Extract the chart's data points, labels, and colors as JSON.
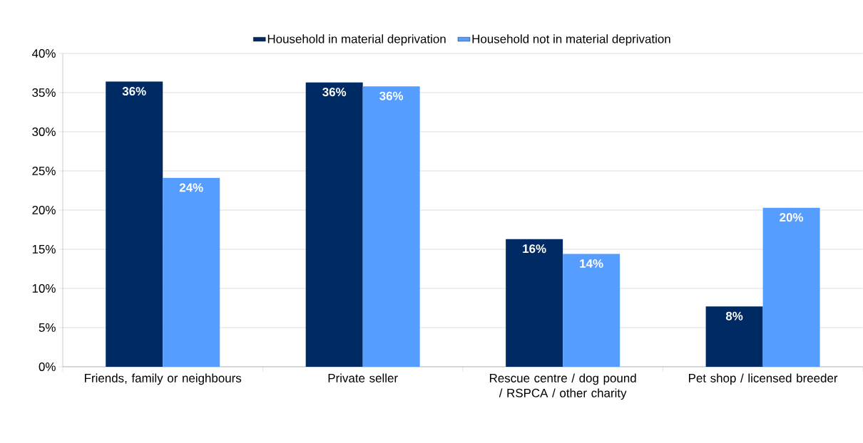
{
  "chart_data": {
    "type": "bar",
    "categories": [
      "Friends, family or neighbours",
      "Private seller",
      "Rescue centre / dog pound / RSPCA / other charity",
      "Pet shop / licensed breeder"
    ],
    "series": [
      {
        "name": "Household in material deprivation",
        "color": "#002a64",
        "values": [
          36.4,
          36.3,
          16.3,
          7.7
        ],
        "value_labels": [
          "36%",
          "36%",
          "16%",
          "8%"
        ]
      },
      {
        "name": "Household not in material deprivation",
        "color": "#559eff",
        "values": [
          24.1,
          35.8,
          14.4,
          20.3
        ],
        "value_labels": [
          "24%",
          "36%",
          "14%",
          "20%"
        ]
      }
    ],
    "ylim": [
      0,
      40
    ],
    "yticks": [
      {
        "value": 0,
        "label": "0%"
      },
      {
        "value": 5,
        "label": "5%"
      },
      {
        "value": 10,
        "label": "10%"
      },
      {
        "value": 15,
        "label": "15%"
      },
      {
        "value": 20,
        "label": "20%"
      },
      {
        "value": 25,
        "label": "25%"
      },
      {
        "value": 30,
        "label": "30%"
      },
      {
        "value": 35,
        "label": "35%"
      },
      {
        "value": 40,
        "label": "40%"
      }
    ],
    "grid": "y",
    "legend": "top"
  }
}
